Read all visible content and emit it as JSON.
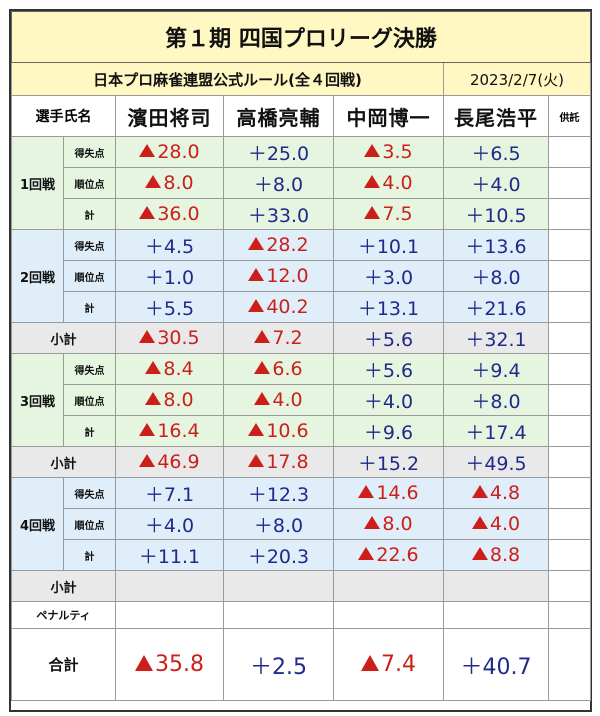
{
  "title": "第１期 四国プロリーグ決勝",
  "rule": "日本プロ麻雀連盟公式ルール(全４回戦)",
  "date": "2023/2/7(火)",
  "header": {
    "player_label": "選手氏名",
    "deposit_label": "供託"
  },
  "players": [
    "濱田将司",
    "高橋亮輔",
    "中岡博一",
    "長尾浩平"
  ],
  "row_labels": {
    "score": "得失点",
    "rank": "順位点",
    "total": "計"
  },
  "rounds": [
    {
      "label": "1回戦",
      "score": [
        {
          "text": "28.0",
          "neg": true
        },
        {
          "text": "＋25.0",
          "neg": false
        },
        {
          "text": "3.5",
          "neg": true
        },
        {
          "text": "＋6.5",
          "neg": false
        }
      ],
      "rank": [
        {
          "text": "8.0",
          "neg": true
        },
        {
          "text": "＋8.0",
          "neg": false
        },
        {
          "text": "4.0",
          "neg": true
        },
        {
          "text": "＋4.0",
          "neg": false
        }
      ],
      "total": [
        {
          "text": "36.0",
          "neg": true
        },
        {
          "text": "＋33.0",
          "neg": false
        },
        {
          "text": "7.5",
          "neg": true
        },
        {
          "text": "＋10.5",
          "neg": false
        }
      ]
    },
    {
      "label": "2回戦",
      "score": [
        {
          "text": "＋4.5",
          "neg": false
        },
        {
          "text": "28.2",
          "neg": true
        },
        {
          "text": "＋10.1",
          "neg": false
        },
        {
          "text": "＋13.6",
          "neg": false
        }
      ],
      "rank": [
        {
          "text": "＋1.0",
          "neg": false
        },
        {
          "text": "12.0",
          "neg": true
        },
        {
          "text": "＋3.0",
          "neg": false
        },
        {
          "text": "＋8.0",
          "neg": false
        }
      ],
      "total": [
        {
          "text": "＋5.5",
          "neg": false
        },
        {
          "text": "40.2",
          "neg": true
        },
        {
          "text": "＋13.1",
          "neg": false
        },
        {
          "text": "＋21.6",
          "neg": false
        }
      ]
    },
    {
      "label": "3回戦",
      "score": [
        {
          "text": "8.4",
          "neg": true
        },
        {
          "text": "6.6",
          "neg": true
        },
        {
          "text": "＋5.6",
          "neg": false
        },
        {
          "text": "＋9.4",
          "neg": false
        }
      ],
      "rank": [
        {
          "text": "8.0",
          "neg": true
        },
        {
          "text": "4.0",
          "neg": true
        },
        {
          "text": "＋4.0",
          "neg": false
        },
        {
          "text": "＋8.0",
          "neg": false
        }
      ],
      "total": [
        {
          "text": "16.4",
          "neg": true
        },
        {
          "text": "10.6",
          "neg": true
        },
        {
          "text": "＋9.6",
          "neg": false
        },
        {
          "text": "＋17.4",
          "neg": false
        }
      ]
    },
    {
      "label": "4回戦",
      "score": [
        {
          "text": "＋7.1",
          "neg": false
        },
        {
          "text": "＋12.3",
          "neg": false
        },
        {
          "text": "14.6",
          "neg": true
        },
        {
          "text": "4.8",
          "neg": true
        }
      ],
      "rank": [
        {
          "text": "＋4.0",
          "neg": false
        },
        {
          "text": "＋8.0",
          "neg": false
        },
        {
          "text": "8.0",
          "neg": true
        },
        {
          "text": "4.0",
          "neg": true
        }
      ],
      "total": [
        {
          "text": "＋11.1",
          "neg": false
        },
        {
          "text": "＋20.3",
          "neg": false
        },
        {
          "text": "22.6",
          "neg": true
        },
        {
          "text": "8.8",
          "neg": true
        }
      ]
    }
  ],
  "subtotal_label": "小計",
  "subtotals": [
    [
      {
        "text": "30.5",
        "neg": true
      },
      {
        "text": "7.2",
        "neg": true
      },
      {
        "text": "＋5.6",
        "neg": false
      },
      {
        "text": "＋32.1",
        "neg": false
      }
    ],
    [
      {
        "text": "46.9",
        "neg": true
      },
      {
        "text": "17.8",
        "neg": true
      },
      {
        "text": "＋15.2",
        "neg": false
      },
      {
        "text": "＋49.5",
        "neg": false
      }
    ],
    [
      {
        "text": "",
        "neg": false
      },
      {
        "text": "",
        "neg": false
      },
      {
        "text": "",
        "neg": false
      },
      {
        "text": "",
        "neg": false
      }
    ]
  ],
  "penalty_label": "ペナルティ",
  "grand_total_label": "合計",
  "grand_total": [
    {
      "text": "35.8",
      "neg": true
    },
    {
      "text": "＋2.5",
      "neg": false
    },
    {
      "text": "7.4",
      "neg": true
    },
    {
      "text": "＋40.7",
      "neg": false
    }
  ],
  "colors": {
    "negative": "#cc1f1a",
    "positive": "#1f2a8a",
    "title_bg": "#fff8c2",
    "odd_round_bg": "#e6f5e0",
    "even_round_bg": "#e0eef9",
    "subtotal_bg": "#e9e9e9"
  },
  "icons": {
    "negative_marker": "red-triangle-icon"
  }
}
